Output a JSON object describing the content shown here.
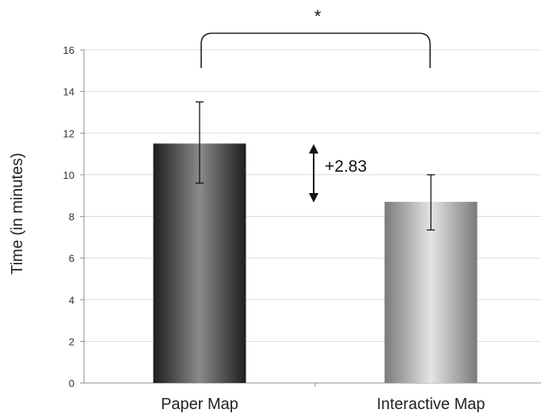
{
  "chart_data": {
    "type": "bar",
    "categories": [
      "Paper Map",
      "Interactive Map"
    ],
    "values": [
      11.5,
      8.7
    ],
    "error_bars": [
      {
        "low": 9.6,
        "high": 13.5
      },
      {
        "low": 7.35,
        "high": 10.0
      }
    ],
    "ylabel": "Time (in minutes)",
    "xlabel": "",
    "title": "",
    "ylim": [
      0,
      16
    ],
    "yticks": [
      0,
      2,
      4,
      6,
      8,
      10,
      12,
      14,
      16
    ],
    "grid": true,
    "legend": "none",
    "annotations": {
      "difference_label": "+2.83",
      "significance_label": "*"
    },
    "colors": {
      "paper_dark": "#1e1e1e",
      "paper_mid": "#8a8a8a",
      "interactive_dark": "#7a7a7a",
      "interactive_light": "#e4e4e4",
      "grid": "#d9d9d9",
      "axis": "#8c8c8c"
    }
  }
}
